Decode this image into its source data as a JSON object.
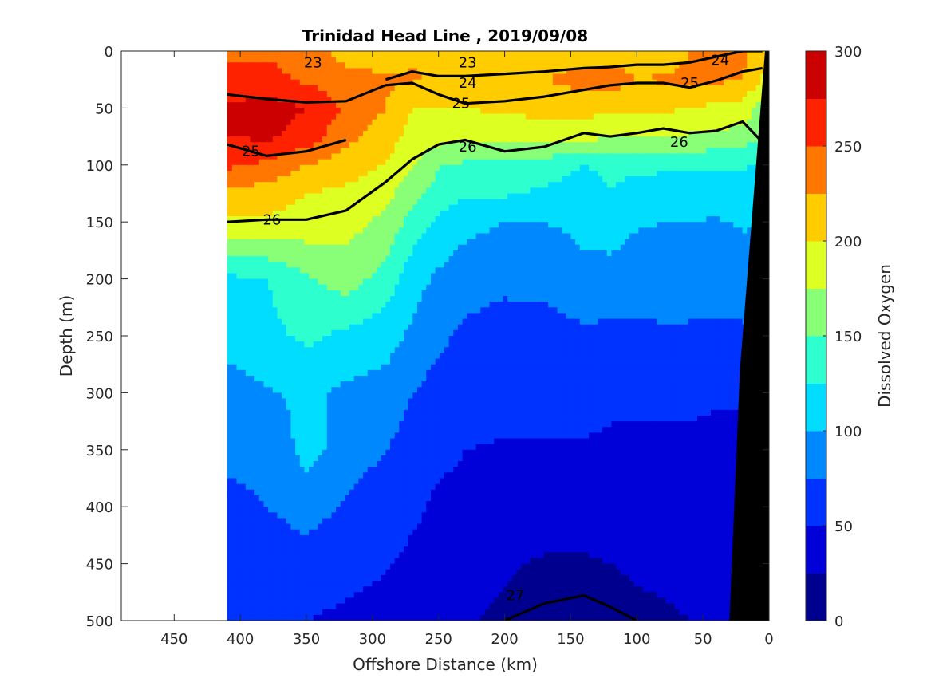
{
  "chart_data": {
    "type": "heatmap",
    "subtype": "filled-contour section with isopycnal line contours",
    "title": "Trinidad Head Line , 2019/09/08",
    "xlabel": "Offshore Distance (km)",
    "ylabel": "Depth (m)",
    "colorbar_label": "Dissolved Oxygen",
    "xlim": [
      490,
      0
    ],
    "x_reversed": true,
    "ylim": [
      500,
      0
    ],
    "y_reversed": true,
    "x_ticks": [
      450,
      400,
      350,
      300,
      250,
      200,
      150,
      100,
      50,
      0
    ],
    "y_ticks": [
      0,
      50,
      100,
      150,
      200,
      250,
      300,
      350,
      400,
      450,
      500
    ],
    "colorbar_ticks": [
      0,
      50,
      100,
      150,
      200,
      250,
      300
    ],
    "colorbar_range": [
      0,
      300
    ],
    "colormap_levels": [
      {
        "min": 0,
        "max": 25,
        "color": "#00008f"
      },
      {
        "min": 25,
        "max": 50,
        "color": "#0000d8"
      },
      {
        "min": 50,
        "max": 75,
        "color": "#0033ff"
      },
      {
        "min": 75,
        "max": 100,
        "color": "#0088ff"
      },
      {
        "min": 100,
        "max": 125,
        "color": "#00ddff"
      },
      {
        "min": 125,
        "max": 150,
        "color": "#2effcf"
      },
      {
        "min": 150,
        "max": 175,
        "color": "#88ff77"
      },
      {
        "min": 175,
        "max": 200,
        "color": "#ddff22"
      },
      {
        "min": 200,
        "max": 225,
        "color": "#ffcc00"
      },
      {
        "min": 225,
        "max": 250,
        "color": "#ff7700"
      },
      {
        "min": 250,
        "max": 275,
        "color": "#ff2200"
      },
      {
        "min": 275,
        "max": 300,
        "color": "#cc0000"
      }
    ],
    "data_extent_km": [
      410,
      0
    ],
    "bathymetry_color": "#000000",
    "oxygen_field": {
      "x": [
        410,
        380,
        350,
        320,
        290,
        270,
        250,
        230,
        200,
        170,
        140,
        120,
        100,
        80,
        60,
        40,
        20,
        5
      ],
      "z": [
        0,
        25,
        50,
        75,
        100,
        125,
        150,
        200,
        250,
        300,
        350,
        400,
        450,
        500
      ],
      "values": [
        [
          240,
          245,
          235,
          215,
          212,
          220,
          212,
          210,
          212,
          212,
          212,
          210,
          210,
          212,
          225,
          230,
          230,
          205
        ],
        [
          262,
          260,
          245,
          235,
          228,
          228,
          222,
          225,
          225,
          225,
          235,
          240,
          225,
          228,
          230,
          230,
          225,
          198
        ],
        [
          278,
          285,
          275,
          245,
          225,
          200,
          198,
          200,
          205,
          210,
          210,
          205,
          205,
          205,
          200,
          195,
          190,
          165
        ],
        [
          275,
          280,
          265,
          232,
          212,
          190,
          185,
          182,
          182,
          182,
          182,
          178,
          175,
          175,
          172,
          170,
          165,
          150
        ],
        [
          255,
          245,
          225,
          212,
          198,
          178,
          152,
          145,
          140,
          140,
          125,
          132,
          135,
          132,
          132,
          128,
          128,
          120
        ],
        [
          215,
          215,
          200,
          195,
          182,
          160,
          140,
          128,
          128,
          120,
          112,
          125,
          110,
          105,
          108,
          112,
          115,
          108
        ],
        [
          195,
          195,
          190,
          185,
          168,
          140,
          120,
          108,
          100,
          100,
          105,
          110,
          102,
          100,
          100,
          98,
          102,
          100
        ],
        [
          120,
          125,
          148,
          162,
          140,
          110,
          95,
          85,
          80,
          85,
          95,
          92,
          88,
          92,
          90,
          88,
          90,
          88
        ],
        [
          115,
          118,
          130,
          120,
          110,
          95,
          80,
          70,
          65,
          62,
          70,
          68,
          68,
          70,
          70,
          70,
          70,
          75
        ],
        [
          85,
          98,
          105,
          95,
          90,
          75,
          65,
          60,
          58,
          56,
          58,
          55,
          55,
          55,
          55,
          52,
          52,
          60
        ],
        [
          80,
          80,
          110,
          88,
          75,
          65,
          55,
          50,
          48,
          48,
          48,
          46,
          45,
          45,
          45,
          45,
          45,
          48
        ],
        [
          70,
          75,
          85,
          72,
          60,
          55,
          45,
          45,
          42,
          42,
          40,
          40,
          38,
          38,
          40,
          40,
          40,
          42
        ],
        [
          60,
          60,
          65,
          58,
          52,
          45,
          40,
          38,
          28,
          22,
          22,
          25,
          28,
          30,
          32,
          35,
          38,
          40
        ],
        [
          52,
          55,
          50,
          45,
          40,
          32,
          28,
          28,
          20,
          15,
          15,
          18,
          20,
          22,
          25,
          28,
          30,
          35
        ]
      ]
    },
    "density_contours": {
      "x_km": [
        410,
        380,
        350,
        320,
        290,
        270,
        250,
        230,
        200,
        170,
        140,
        120,
        100,
        80,
        60,
        40,
        20,
        5
      ],
      "major": [
        {
          "label": "23",
          "depth": [
            null,
            null,
            null,
            null,
            null,
            null,
            null,
            null,
            null,
            null,
            null,
            null,
            null,
            null,
            null,
            null,
            null,
            null
          ]
        },
        {
          "label": "24",
          "depth": [
            null,
            null,
            null,
            null,
            25,
            18,
            22,
            22,
            20,
            18,
            15,
            14,
            12,
            12,
            10,
            5,
            0,
            0
          ]
        },
        {
          "label": "25",
          "depth": [
            38,
            42,
            45,
            44,
            30,
            28,
            38,
            46,
            44,
            40,
            34,
            30,
            28,
            28,
            32,
            26,
            18,
            15
          ]
        },
        {
          "label": "25",
          "depth": [
            82,
            92,
            88,
            78,
            null,
            null,
            null,
            null,
            null,
            null,
            null,
            null,
            null,
            null,
            null,
            null,
            null,
            null
          ]
        },
        {
          "label": "26",
          "depth": [
            150,
            148,
            148,
            140,
            115,
            95,
            82,
            78,
            88,
            84,
            72,
            75,
            72,
            68,
            72,
            70,
            62,
            80
          ]
        },
        {
          "label": "27",
          "depth": [
            null,
            null,
            null,
            null,
            null,
            null,
            null,
            null,
            500,
            485,
            478,
            488,
            500,
            null,
            null,
            null,
            null,
            null
          ]
        }
      ]
    },
    "contour_labels": [
      {
        "text": "23",
        "x": 345,
        "z": 10
      },
      {
        "text": "23",
        "x": 228,
        "z": 10
      },
      {
        "text": "24",
        "x": 37,
        "z": 8
      },
      {
        "text": "24",
        "x": 228,
        "z": 28
      },
      {
        "text": "25",
        "x": 233,
        "z": 46
      },
      {
        "text": "25",
        "x": 60,
        "z": 28
      },
      {
        "text": "25",
        "x": 392,
        "z": 88
      },
      {
        "text": "26",
        "x": 228,
        "z": 84
      },
      {
        "text": "26",
        "x": 68,
        "z": 80
      },
      {
        "text": "26",
        "x": 376,
        "z": 148
      },
      {
        "text": "27",
        "x": 192,
        "z": 478
      }
    ]
  }
}
